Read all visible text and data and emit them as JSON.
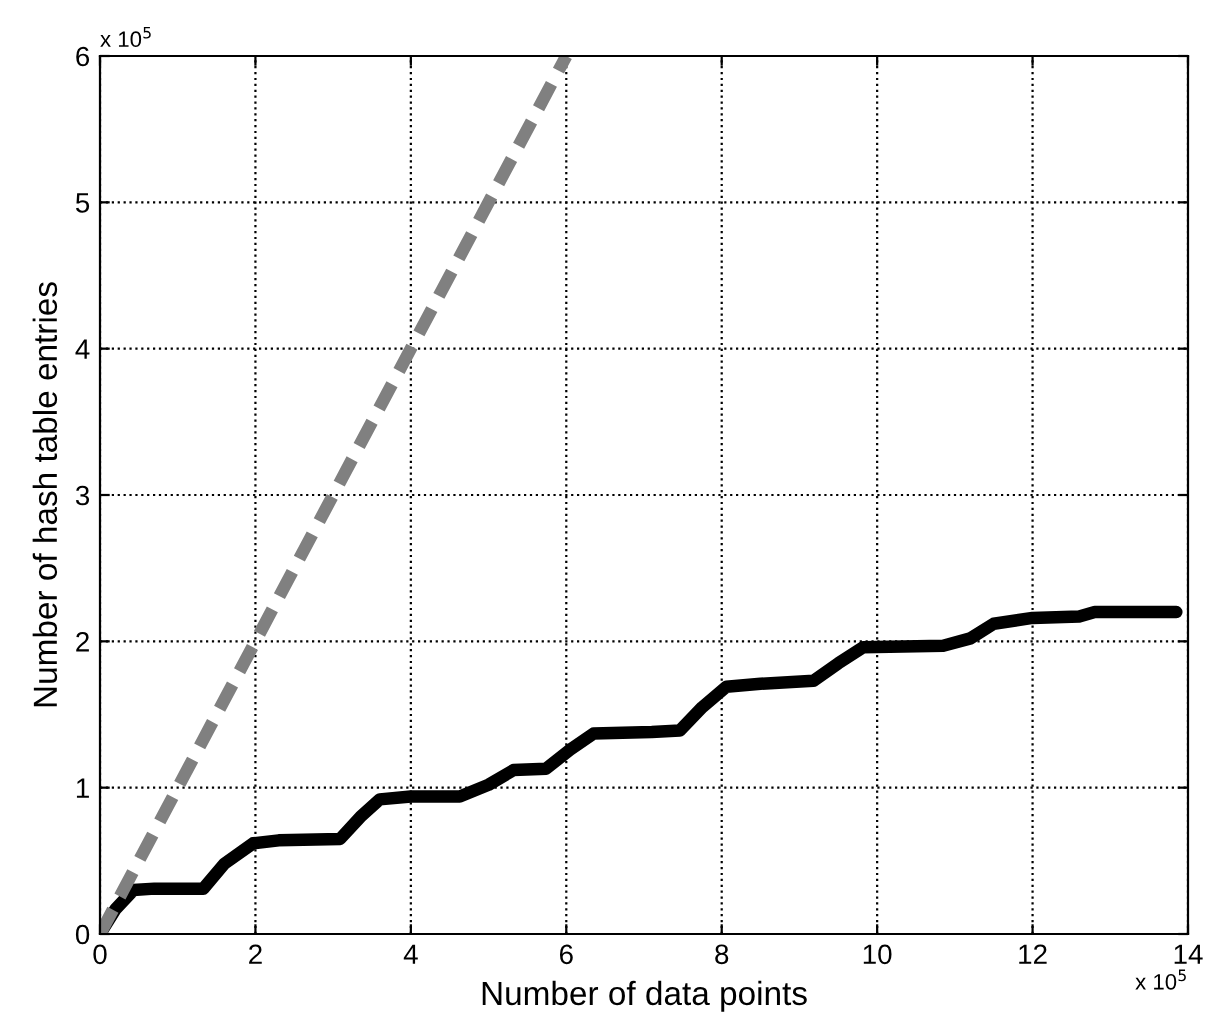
{
  "chart_data": {
    "type": "line",
    "xlabel": "Number of data points",
    "ylabel": "Number of hash table entries",
    "xlim": [
      0,
      14
    ],
    "ylim": [
      0,
      6
    ],
    "xticks": [
      0,
      2,
      4,
      6,
      8,
      10,
      12,
      14
    ],
    "yticks": [
      0,
      1,
      2,
      3,
      4,
      5,
      6
    ],
    "grid": true,
    "marker": "none",
    "annotations": [
      "x 10$^{5}$",
      "x 10$^{5}$"
    ],
    "series": [
      {
        "color": "#000000",
        "line_style": "solid",
        "x": [
          0,
          0.2,
          0.43,
          0.7,
          1.33,
          1.6,
          1.97,
          2.3,
          3.09,
          3.35,
          3.6,
          4.0,
          4.63,
          5.0,
          5.32,
          5.74,
          6.05,
          6.35,
          7.1,
          7.46,
          7.75,
          8.06,
          8.5,
          9.18,
          9.5,
          9.82,
          10.85,
          11.2,
          11.5,
          12.0,
          12.6,
          12.8,
          13.85
        ],
        "values": [
          0,
          0.17,
          0.3,
          0.31,
          0.31,
          0.48,
          0.62,
          0.64,
          0.65,
          0.8,
          0.92,
          0.94,
          0.94,
          1.02,
          1.12,
          1.13,
          1.26,
          1.37,
          1.38,
          1.39,
          1.55,
          1.69,
          1.71,
          1.73,
          1.85,
          1.96,
          1.97,
          2.02,
          2.12,
          2.16,
          2.17,
          2.2,
          2.2
        ]
      },
      {
        "color": "#808080",
        "line_style": "dashed",
        "x": [
          0,
          6
        ],
        "values": [
          0,
          6
        ]
      }
    ]
  }
}
